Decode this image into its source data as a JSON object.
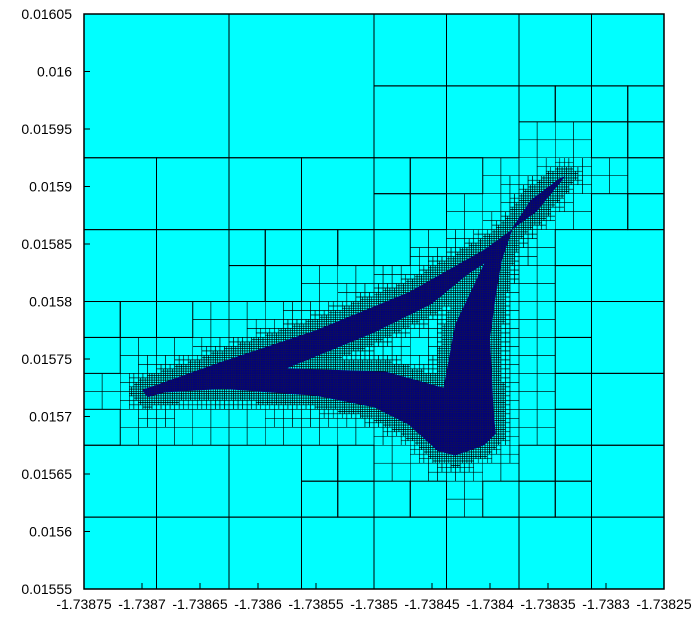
{
  "chart_data": {
    "type": "heatmap",
    "title": "",
    "xlabel": "",
    "ylabel": "",
    "xlim": [
      -1.73875,
      -1.73825
    ],
    "ylim": [
      0.01555,
      0.01605
    ],
    "grid": false,
    "x_tick_labels": [
      "-1.73875",
      "-1.7387",
      "-1.73865",
      "-1.7386",
      "-1.73855",
      "-1.7385",
      "-1.73845",
      "-1.7384",
      "-1.73835",
      "-1.7383",
      "-1.73825"
    ],
    "y_tick_labels": [
      "0.01605",
      "0.016",
      "0.01595",
      "0.0159",
      "0.01585",
      "0.0158",
      "0.01575",
      "0.0157",
      "0.01565",
      "0.0156",
      "0.01555"
    ],
    "x_ticks": [
      -1.73875,
      -1.7387,
      -1.73865,
      -1.7386,
      -1.73855,
      -1.7385,
      -1.73845,
      -1.7384,
      -1.73835,
      -1.7383,
      -1.73825
    ],
    "y_ticks": [
      0.01605,
      0.016,
      0.01595,
      0.0159,
      0.01585,
      0.0158,
      0.01575,
      0.0157,
      0.01565,
      0.0156,
      0.01555
    ],
    "colors": {
      "background_cell": "#00ffff",
      "refined_region": "#00007f",
      "grid_line": "#000000"
    },
    "refined_region_vertices": [
      {
        "x": -1.7387,
        "y": 0.015723
      },
      {
        "x": -1.73863,
        "y": 0.015748
      },
      {
        "x": -1.73855,
        "y": 0.015775
      },
      {
        "x": -1.73847,
        "y": 0.015808
      },
      {
        "x": -1.738405,
        "y": 0.015845
      },
      {
        "x": -1.73836,
        "y": 0.015878
      },
      {
        "x": -1.738335,
        "y": 0.015909
      },
      {
        "x": -1.73834,
        "y": 0.015907
      },
      {
        "x": -1.738365,
        "y": 0.015888
      },
      {
        "x": -1.73838,
        "y": 0.015865
      },
      {
        "x": -1.73839,
        "y": 0.015835
      },
      {
        "x": -1.738395,
        "y": 0.015805
      },
      {
        "x": -1.7384,
        "y": 0.015768
      },
      {
        "x": -1.738397,
        "y": 0.015705
      },
      {
        "x": -1.738395,
        "y": 0.015685
      },
      {
        "x": -1.738405,
        "y": 0.015675
      },
      {
        "x": -1.73843,
        "y": 0.015666
      },
      {
        "x": -1.738445,
        "y": 0.01567
      },
      {
        "x": -1.73847,
        "y": 0.015693
      },
      {
        "x": -1.7385,
        "y": 0.015708
      },
      {
        "x": -1.73855,
        "y": 0.015718
      },
      {
        "x": -1.73863,
        "y": 0.015724
      },
      {
        "x": -1.73868,
        "y": 0.015721
      },
      {
        "x": -1.738695,
        "y": 0.015717
      }
    ],
    "refined_region_hole_vertices": [
      {
        "x": -1.738575,
        "y": 0.015742
      },
      {
        "x": -1.7385,
        "y": 0.015773
      },
      {
        "x": -1.73845,
        "y": 0.015798
      },
      {
        "x": -1.73842,
        "y": 0.015823
      },
      {
        "x": -1.738405,
        "y": 0.015833
      },
      {
        "x": -1.73843,
        "y": 0.01578
      },
      {
        "x": -1.73844,
        "y": 0.015725
      },
      {
        "x": -1.73849,
        "y": 0.015739
      }
    ]
  }
}
